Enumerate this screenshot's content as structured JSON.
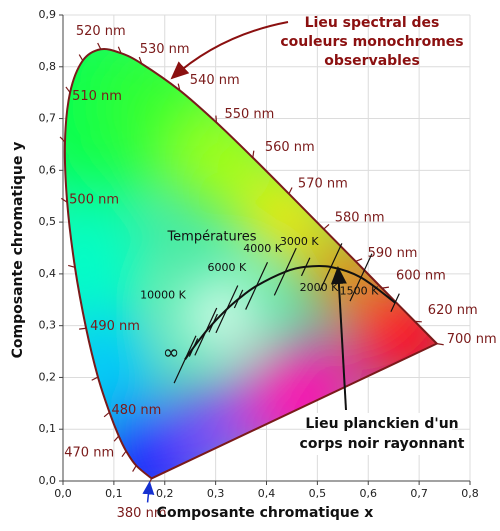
{
  "chart_data": {
    "type": "chromaticity",
    "x_label": "Composante chromatique x",
    "y_label": "Composante chromatique y",
    "xlim": [
      0,
      0.8
    ],
    "ylim": [
      0,
      0.9
    ],
    "xticks": [
      {
        "value": 0,
        "label": "0,0"
      },
      {
        "value": 0.1,
        "label": "0,1"
      },
      {
        "value": 0.2,
        "label": "0,2"
      },
      {
        "value": 0.3,
        "label": "0,3"
      },
      {
        "value": 0.4,
        "label": "0,4"
      },
      {
        "value": 0.5,
        "label": "0,5"
      },
      {
        "value": 0.6,
        "label": "0,6"
      },
      {
        "value": 0.7,
        "label": "0,7"
      },
      {
        "value": 0.8,
        "label": "0,8"
      }
    ],
    "yticks": [
      {
        "value": 0,
        "label": "0,0"
      },
      {
        "value": 0.1,
        "label": "0,1"
      },
      {
        "value": 0.2,
        "label": "0,2"
      },
      {
        "value": 0.3,
        "label": "0,3"
      },
      {
        "value": 0.4,
        "label": "0,4"
      },
      {
        "value": 0.5,
        "label": "0,5"
      },
      {
        "value": 0.6,
        "label": "0,6"
      },
      {
        "value": 0.7,
        "label": "0,7"
      },
      {
        "value": 0.8,
        "label": "0,8"
      },
      {
        "value": 0.9,
        "label": "0,9"
      }
    ],
    "grid": true,
    "spectral_locus": {
      "color": "#7a1a1a",
      "x": [
        0.1741,
        0.144,
        0.1241,
        0.1096,
        0.0913,
        0.0687,
        0.0454,
        0.0235,
        0.0082,
        0.0039,
        0.0139,
        0.0389,
        0.0743,
        0.1142,
        0.1547,
        0.2296,
        0.3016,
        0.3731,
        0.4441,
        0.5125,
        0.5752,
        0.627,
        0.6915,
        0.7347
      ],
      "y": [
        0.005,
        0.0297,
        0.0578,
        0.0868,
        0.1327,
        0.2007,
        0.295,
        0.4127,
        0.5384,
        0.6548,
        0.7502,
        0.812,
        0.8338,
        0.8262,
        0.8059,
        0.7543,
        0.6923,
        0.6245,
        0.5547,
        0.4866,
        0.4242,
        0.3725,
        0.3083,
        0.2653
      ],
      "labels": [
        "380 nm",
        null,
        "470 nm",
        null,
        "480 nm",
        null,
        "490 nm",
        null,
        "500 nm",
        null,
        "510 nm",
        null,
        "520 nm",
        null,
        "530 nm",
        "540 nm",
        "550 nm",
        "560 nm",
        "570 nm",
        "580 nm",
        "590 nm",
        "600 nm",
        "620 nm",
        "700 nm"
      ]
    },
    "planckian_locus": {
      "color": "#111111",
      "x": [
        0.2399,
        0.2565,
        0.2807,
        0.2952,
        0.3221,
        0.3451,
        0.3805,
        0.4369,
        0.477,
        0.5267,
        0.5857,
        0.6528
      ],
      "y": [
        0.2348,
        0.2577,
        0.2884,
        0.3048,
        0.3318,
        0.3516,
        0.3768,
        0.4041,
        0.4137,
        0.4133,
        0.3931,
        0.3444
      ],
      "labels": [
        "∞",
        null,
        "10000 K",
        null,
        "6000 K",
        null,
        "4000 K",
        "3000 K",
        null,
        "2000 K",
        "1500 K",
        null
      ]
    },
    "annotations": {
      "spectral": [
        "Lieu spectral des",
        "couleurs monochromes",
        "observables"
      ],
      "temperatures": "Températures",
      "planckian": [
        "Lieu planckien d'un",
        "corps noir rayonnant"
      ]
    }
  }
}
